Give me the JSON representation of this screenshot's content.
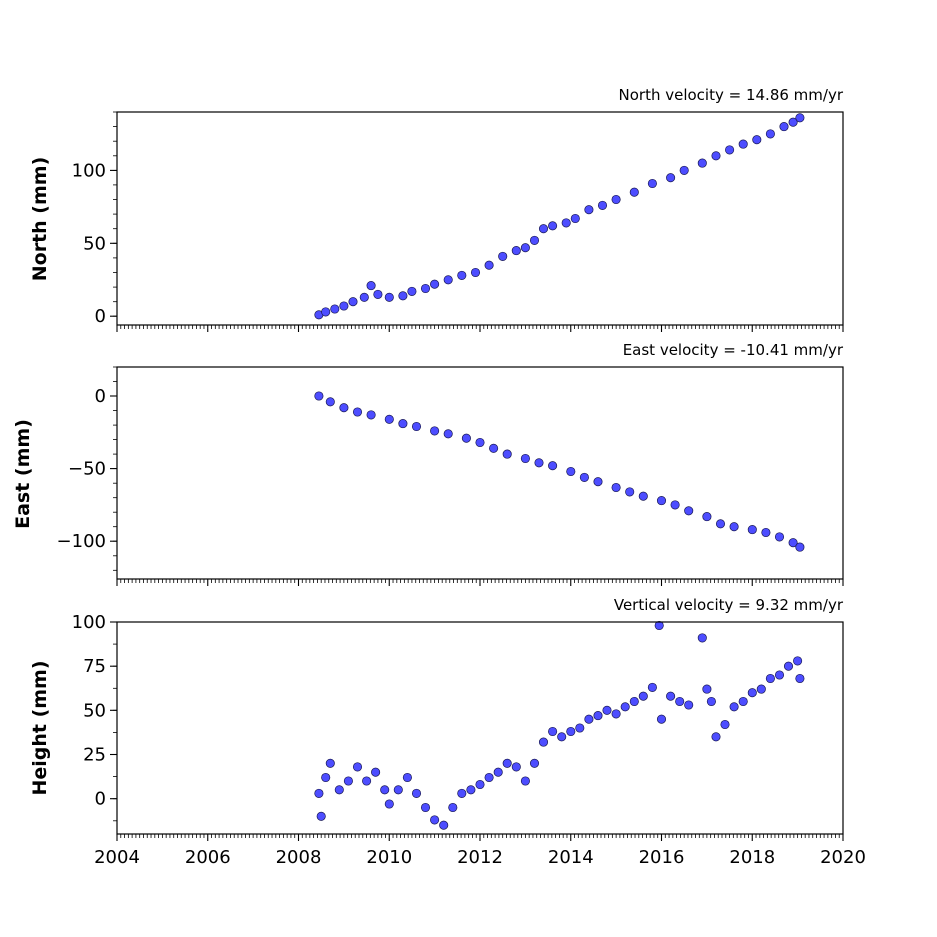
{
  "chart_data": [
    {
      "type": "scatter",
      "title": "North velocity = 14.86 mm/yr",
      "ylabel": "North (mm)",
      "xlim": [
        2004,
        2020
      ],
      "ylim": [
        -6,
        140
      ],
      "yticks": [
        0,
        50,
        100
      ],
      "xticks": [],
      "marker_color": "#4d4dff",
      "series": [
        {
          "points": [
            [
              2008.45,
              1
            ],
            [
              2008.6,
              3
            ],
            [
              2008.8,
              5
            ],
            [
              2009.0,
              7
            ],
            [
              2009.2,
              10
            ],
            [
              2009.45,
              13
            ],
            [
              2009.6,
              21
            ],
            [
              2009.75,
              15
            ],
            [
              2010.0,
              13
            ],
            [
              2010.3,
              14
            ],
            [
              2010.5,
              17
            ],
            [
              2010.8,
              19
            ],
            [
              2011.0,
              22
            ],
            [
              2011.3,
              25
            ],
            [
              2011.6,
              28
            ],
            [
              2011.9,
              30
            ],
            [
              2012.2,
              35
            ],
            [
              2012.5,
              41
            ],
            [
              2012.8,
              45
            ],
            [
              2013.0,
              47
            ],
            [
              2013.2,
              52
            ],
            [
              2013.4,
              60
            ],
            [
              2013.6,
              62
            ],
            [
              2013.9,
              64
            ],
            [
              2014.1,
              67
            ],
            [
              2014.4,
              73
            ],
            [
              2014.7,
              76
            ],
            [
              2015.0,
              80
            ],
            [
              2015.4,
              85
            ],
            [
              2015.8,
              91
            ],
            [
              2016.2,
              95
            ],
            [
              2016.5,
              100
            ],
            [
              2016.9,
              105
            ],
            [
              2017.2,
              110
            ],
            [
              2017.5,
              114
            ],
            [
              2017.8,
              118
            ],
            [
              2018.1,
              121
            ],
            [
              2018.4,
              125
            ],
            [
              2018.7,
              130
            ],
            [
              2018.9,
              133
            ],
            [
              2019.05,
              136
            ]
          ]
        }
      ]
    },
    {
      "type": "scatter",
      "title": "East velocity = -10.41 mm/yr",
      "ylabel": "East (mm)",
      "xlim": [
        2004,
        2020
      ],
      "ylim": [
        -126,
        20
      ],
      "yticks": [
        0,
        -50,
        -100
      ],
      "xticks": [],
      "marker_color": "#4d4dff",
      "series": [
        {
          "points": [
            [
              2008.45,
              0
            ],
            [
              2008.7,
              -4
            ],
            [
              2009.0,
              -8
            ],
            [
              2009.3,
              -11
            ],
            [
              2009.6,
              -13
            ],
            [
              2010.0,
              -16
            ],
            [
              2010.3,
              -19
            ],
            [
              2010.6,
              -21
            ],
            [
              2011.0,
              -24
            ],
            [
              2011.3,
              -26
            ],
            [
              2011.7,
              -29
            ],
            [
              2012.0,
              -32
            ],
            [
              2012.3,
              -36
            ],
            [
              2012.6,
              -40
            ],
            [
              2013.0,
              -43
            ],
            [
              2013.3,
              -46
            ],
            [
              2013.6,
              -48
            ],
            [
              2014.0,
              -52
            ],
            [
              2014.3,
              -56
            ],
            [
              2014.6,
              -59
            ],
            [
              2015.0,
              -63
            ],
            [
              2015.3,
              -66
            ],
            [
              2015.6,
              -69
            ],
            [
              2016.0,
              -72
            ],
            [
              2016.3,
              -75
            ],
            [
              2016.6,
              -79
            ],
            [
              2017.0,
              -83
            ],
            [
              2017.3,
              -88
            ],
            [
              2017.6,
              -90
            ],
            [
              2018.0,
              -92
            ],
            [
              2018.3,
              -94
            ],
            [
              2018.6,
              -97
            ],
            [
              2018.9,
              -101
            ],
            [
              2019.05,
              -104
            ]
          ]
        }
      ]
    },
    {
      "type": "scatter",
      "title": "Vertical velocity = 9.32 mm/yr",
      "ylabel": "Height (mm)",
      "xlabel": "",
      "xlim": [
        2004,
        2020
      ],
      "ylim": [
        -20,
        100
      ],
      "yticks": [
        0,
        25,
        50,
        75,
        100
      ],
      "xticks": [
        "2004",
        "2006",
        "2008",
        "2010",
        "2012",
        "2014",
        "2016",
        "2018",
        "2020"
      ],
      "marker_color": "#4d4dff",
      "series": [
        {
          "points": [
            [
              2008.45,
              3
            ],
            [
              2008.5,
              -10
            ],
            [
              2008.6,
              12
            ],
            [
              2008.7,
              20
            ],
            [
              2008.9,
              5
            ],
            [
              2009.1,
              10
            ],
            [
              2009.3,
              18
            ],
            [
              2009.5,
              10
            ],
            [
              2009.7,
              15
            ],
            [
              2009.9,
              5
            ],
            [
              2010.0,
              -3
            ],
            [
              2010.2,
              5
            ],
            [
              2010.4,
              12
            ],
            [
              2010.6,
              3
            ],
            [
              2010.8,
              -5
            ],
            [
              2011.0,
              -12
            ],
            [
              2011.2,
              -15
            ],
            [
              2011.4,
              -5
            ],
            [
              2011.6,
              3
            ],
            [
              2011.8,
              5
            ],
            [
              2012.0,
              8
            ],
            [
              2012.2,
              12
            ],
            [
              2012.4,
              15
            ],
            [
              2012.6,
              20
            ],
            [
              2012.8,
              18
            ],
            [
              2013.0,
              10
            ],
            [
              2013.2,
              20
            ],
            [
              2013.4,
              32
            ],
            [
              2013.6,
              38
            ],
            [
              2013.8,
              35
            ],
            [
              2014.0,
              38
            ],
            [
              2014.2,
              40
            ],
            [
              2014.4,
              45
            ],
            [
              2014.6,
              47
            ],
            [
              2014.8,
              50
            ],
            [
              2015.0,
              48
            ],
            [
              2015.2,
              52
            ],
            [
              2015.4,
              55
            ],
            [
              2015.6,
              58
            ],
            [
              2015.8,
              63
            ],
            [
              2015.95,
              98
            ],
            [
              2016.0,
              45
            ],
            [
              2016.2,
              58
            ],
            [
              2016.4,
              55
            ],
            [
              2016.6,
              53
            ],
            [
              2016.9,
              91
            ],
            [
              2017.0,
              62
            ],
            [
              2017.1,
              55
            ],
            [
              2017.2,
              35
            ],
            [
              2017.4,
              42
            ],
            [
              2017.6,
              52
            ],
            [
              2017.8,
              55
            ],
            [
              2018.0,
              60
            ],
            [
              2018.2,
              62
            ],
            [
              2018.4,
              68
            ],
            [
              2018.6,
              70
            ],
            [
              2018.8,
              75
            ],
            [
              2019.0,
              78
            ],
            [
              2019.05,
              68
            ]
          ]
        }
      ]
    }
  ]
}
